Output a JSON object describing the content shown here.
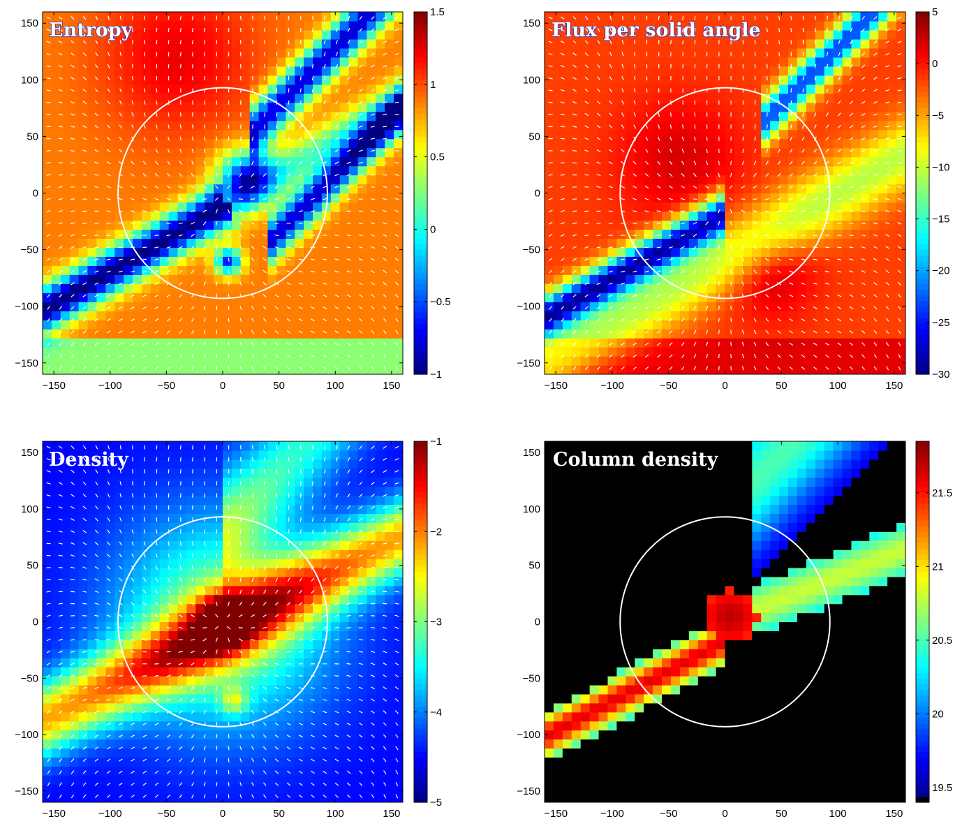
{
  "figure": {
    "axis_ticks": [
      "−150",
      "−100",
      "−50",
      "0",
      "50",
      "100",
      "150"
    ],
    "colormap": "jet",
    "overlay": "white velocity arrows and white reference circle of radius ~93 centered near (0, 0)"
  },
  "chart_data": [
    {
      "type": "heatmap",
      "title": "Entropy",
      "title_style": "outlined",
      "xlim": [
        -160,
        160
      ],
      "ylim": [
        -160,
        160
      ],
      "xticks": [
        -150,
        -100,
        -50,
        0,
        50,
        100,
        150
      ],
      "yticks": [
        -150,
        -100,
        -50,
        0,
        50,
        100,
        150
      ],
      "colorbar": {
        "range": [
          -1,
          1.5
        ],
        "ticks": [
          -1,
          -0.5,
          0,
          0.5,
          1,
          1.5
        ],
        "tick_labels": [
          "−1",
          "−0.5",
          "0",
          "0.5",
          "1",
          "1.5"
        ]
      },
      "circle": {
        "cx": 0,
        "cy": 0,
        "r": 93
      }
    },
    {
      "type": "heatmap",
      "title": "Flux per solid angle",
      "title_style": "outlined",
      "xlim": [
        -160,
        160
      ],
      "ylim": [
        -160,
        160
      ],
      "xticks": [
        -150,
        -100,
        -50,
        0,
        50,
        100,
        150
      ],
      "yticks": [
        -150,
        -100,
        -50,
        0,
        50,
        100,
        150
      ],
      "colorbar": {
        "range": [
          -30,
          5
        ],
        "ticks": [
          -30,
          -25,
          -20,
          -15,
          -10,
          -5,
          0,
          5
        ],
        "tick_labels": [
          "−30",
          "−25",
          "−20",
          "−15",
          "−10",
          "−5",
          "0",
          "5"
        ]
      },
      "circle": {
        "cx": 0,
        "cy": 0,
        "r": 93
      }
    },
    {
      "type": "heatmap",
      "title": "Density",
      "title_style": "plain",
      "xlim": [
        -160,
        160
      ],
      "ylim": [
        -160,
        160
      ],
      "xticks": [
        -150,
        -100,
        -50,
        0,
        50,
        100,
        150
      ],
      "yticks": [
        -150,
        -100,
        -50,
        0,
        50,
        100,
        150
      ],
      "colorbar": {
        "range": [
          -5,
          -1
        ],
        "ticks": [
          -5,
          -4,
          -3,
          -2,
          -1
        ],
        "tick_labels": [
          "−5",
          "−4",
          "−3",
          "−2",
          "−1"
        ]
      },
      "circle": {
        "cx": 0,
        "cy": 0,
        "r": 93
      }
    },
    {
      "type": "heatmap",
      "title": "Column density",
      "title_style": "plain",
      "xlim": [
        -160,
        160
      ],
      "ylim": [
        -160,
        160
      ],
      "xticks": [
        -150,
        -100,
        -50,
        0,
        50,
        100,
        150
      ],
      "yticks": [
        -150,
        -100,
        -50,
        0,
        50,
        100,
        150
      ],
      "colorbar": {
        "range": [
          19.4,
          21.85
        ],
        "ticks": [
          19.5,
          20,
          20.5,
          21,
          21.5
        ],
        "tick_labels": [
          "19.5",
          "20",
          "20.5",
          "21",
          "21.5"
        ],
        "below_range_color": "#000000"
      },
      "circle": {
        "cx": 0,
        "cy": 0,
        "r": 93
      }
    }
  ]
}
